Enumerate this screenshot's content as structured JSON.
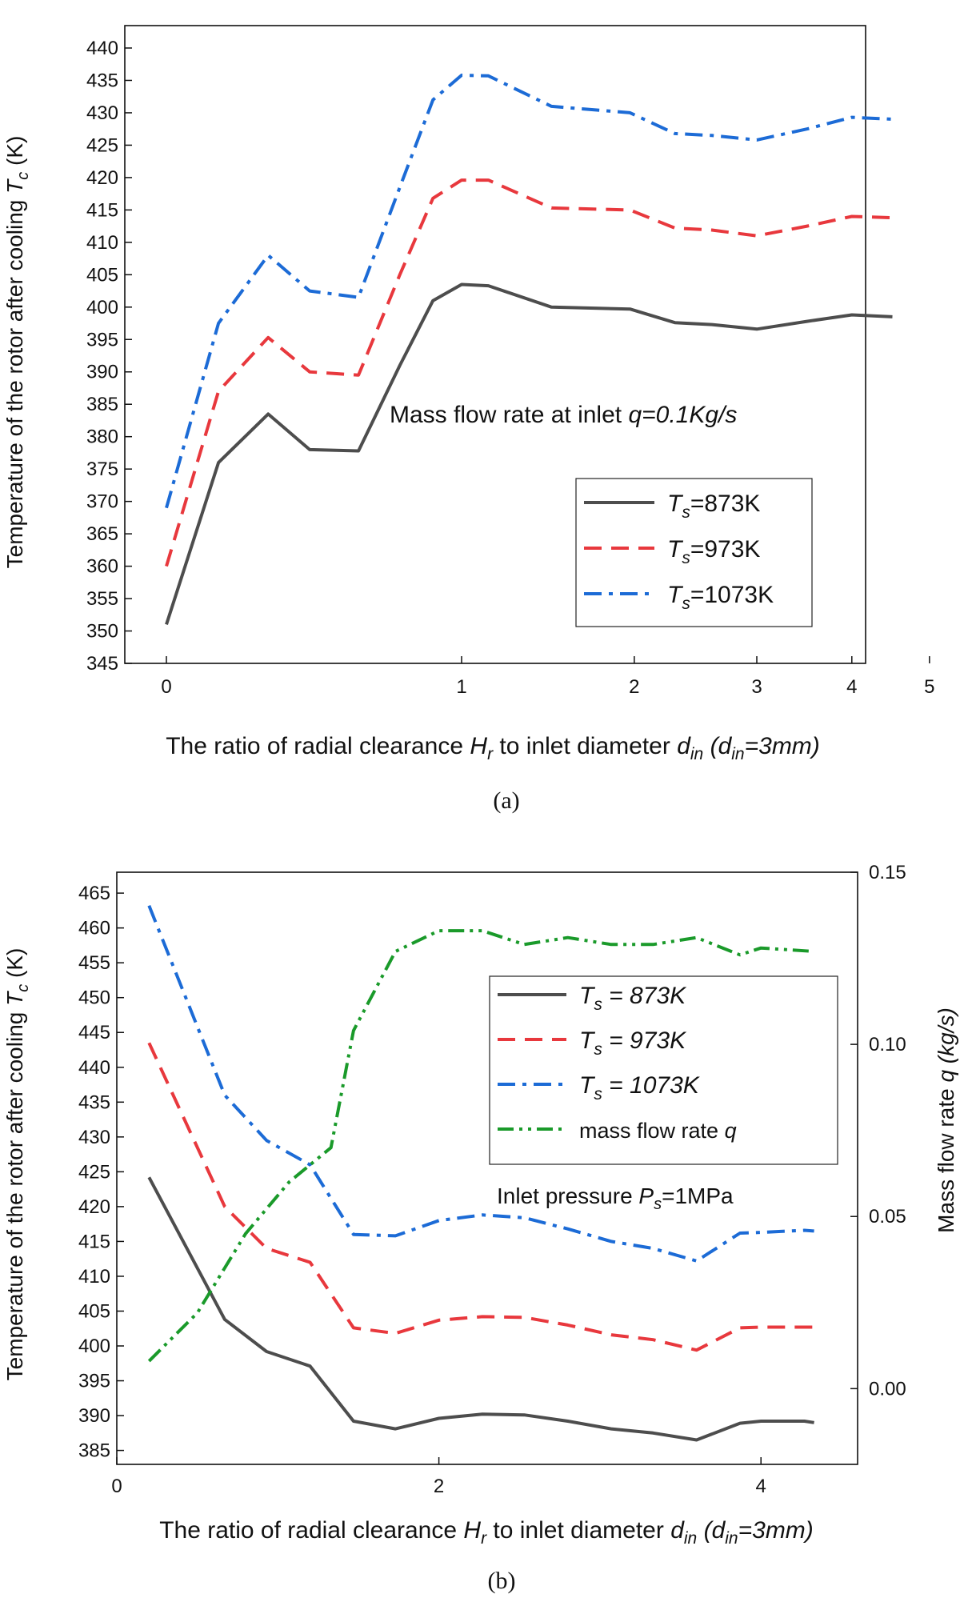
{
  "chart_data": [
    {
      "type": "line",
      "panel_label": "(a)",
      "x_scale": "log",
      "xlabel": {
        "main": "The ratio of radial clearance ",
        "sym": "H",
        "sub": "r",
        "mid": " to inlet diameter ",
        "sym2": "d",
        "sub2": "in",
        "paren_open": " (",
        "sym3": "d",
        "sub3": "in",
        "paren_rest": "=3mm)"
      },
      "ylabel": {
        "main": "Temperature of the rotor after cooling ",
        "sym": "T",
        "sub": "c",
        "unit": " (K)"
      },
      "ylim": [
        345,
        440
      ],
      "yticks": [
        345,
        350,
        355,
        360,
        365,
        370,
        375,
        380,
        385,
        390,
        395,
        400,
        405,
        410,
        415,
        420,
        425,
        430,
        435,
        440
      ],
      "xticks": [
        0,
        1,
        2,
        3,
        4,
        5
      ],
      "xtick_labels": [
        "0",
        "1",
        "2",
        "3",
        "4",
        "5"
      ],
      "annotation": {
        "text": "Mass flow rate at inlet ",
        "italic": "q=0.1Kg/s"
      },
      "legend_position": "bottom-right",
      "x": [
        0.0,
        0.13,
        0.27,
        0.4,
        0.57,
        0.73,
        0.87,
        1.0,
        1.13,
        1.47,
        1.97,
        2.3,
        2.6,
        3.0,
        3.5,
        4.0,
        4.5
      ],
      "series": [
        {
          "name": "Ts=873K",
          "sym": "T",
          "sub": "s",
          "rest": "=873K",
          "color": "#4d4d4d",
          "dash": "solid",
          "values": [
            351.0,
            376.0,
            383.5,
            378.0,
            377.8,
            391.0,
            401.0,
            403.5,
            403.3,
            400.0,
            399.7,
            397.6,
            397.3,
            396.6,
            397.8,
            398.8,
            398.5
          ]
        },
        {
          "name": "Ts=973K",
          "sym": "T",
          "sub": "s",
          "rest": "=973K",
          "color": "#e8383d",
          "dash": "dash",
          "values": [
            360.0,
            387.0,
            395.3,
            390.0,
            389.5,
            405.0,
            416.8,
            419.6,
            419.6,
            415.3,
            415.0,
            412.2,
            411.9,
            411.0,
            412.5,
            414.0,
            413.8
          ]
        },
        {
          "name": "Ts=1073K",
          "sym": "T",
          "sub": "s",
          "rest": "=1073K",
          "color": "#1c6bd6",
          "dash": "dashdot",
          "values": [
            369.0,
            397.5,
            408.0,
            402.5,
            401.5,
            418.5,
            432.0,
            435.8,
            435.7,
            431.0,
            430.0,
            426.8,
            426.5,
            425.8,
            427.5,
            429.3,
            429.0
          ]
        }
      ]
    },
    {
      "type": "line",
      "panel_label": "(b)",
      "x_scale": "linear",
      "xlim": [
        0,
        4.6
      ],
      "xlabel": {
        "main": "The ratio of radial clearance ",
        "sym": "H",
        "sub": "r",
        "mid": " to inlet diameter ",
        "sym2": "d",
        "sub2": "in",
        "paren_open": " (",
        "sym3": "d",
        "sub3": "in",
        "paren_rest": "=3mm)"
      },
      "ylabel": {
        "main": "Temperature of the rotor after cooling ",
        "sym": "T",
        "sub": "c",
        "unit": " (K)"
      },
      "ylabel_right": {
        "main": "Mass flow rate ",
        "sym": "q",
        "unit_italic": " (kg/s)"
      },
      "ylim": [
        383,
        468
      ],
      "yticks": [
        385,
        390,
        395,
        400,
        405,
        410,
        415,
        420,
        425,
        430,
        435,
        440,
        445,
        450,
        455,
        460,
        465
      ],
      "ylim_right": [
        -0.022,
        0.15
      ],
      "yticks_right": [
        0.0,
        0.05,
        0.1,
        0.15
      ],
      "ytick_labels_right": [
        "0.00",
        "0.05",
        "0.10",
        "0.15"
      ],
      "xticks": [
        0,
        2,
        4
      ],
      "xtick_labels": [
        "0",
        "2",
        "4"
      ],
      "annotation": {
        "text": "Inlet pressure ",
        "sym": "P",
        "sub": "s",
        "rest": "=1MPa"
      },
      "legend_position": "top-right",
      "x": [
        0.2,
        0.67,
        0.93,
        1.2,
        1.47,
        1.73,
        2.0,
        2.27,
        2.53,
        2.8,
        3.07,
        3.33,
        3.6,
        3.87,
        4.0,
        4.27,
        4.33
      ],
      "x_flow": [
        0.2,
        0.5,
        0.8,
        1.07,
        1.33,
        1.47,
        1.73,
        2.0,
        2.27,
        2.53,
        2.8,
        3.07,
        3.33,
        3.6,
        3.87,
        4.0,
        4.33
      ],
      "series": [
        {
          "name": "Ts = 873K",
          "sym": "T",
          "sub": "s",
          "rest": "  =  873K",
          "color": "#4d4d4d",
          "dash": "solid",
          "axis": "left",
          "values": [
            424.2,
            403.8,
            399.2,
            397.1,
            389.2,
            388.1,
            389.6,
            390.2,
            390.1,
            389.2,
            388.1,
            387.5,
            386.5,
            388.9,
            389.2,
            389.2,
            389.0
          ]
        },
        {
          "name": "Ts = 973K",
          "sym": "T",
          "sub": "s",
          "rest": "  =  973K",
          "color": "#e8383d",
          "dash": "dash",
          "axis": "left",
          "values": [
            443.5,
            420.0,
            414.0,
            412.0,
            402.6,
            401.8,
            403.7,
            404.2,
            404.1,
            403.0,
            401.6,
            400.9,
            399.4,
            402.6,
            402.7,
            402.7,
            402.7
          ]
        },
        {
          "name": "Ts = 1073K",
          "sym": "T",
          "sub": "s",
          "rest": "  =  1073K",
          "color": "#1c6bd6",
          "dash": "dashdot",
          "axis": "left",
          "values": [
            463.2,
            436.0,
            429.5,
            426.0,
            416.0,
            415.8,
            418.0,
            418.8,
            418.4,
            416.8,
            415.0,
            414.0,
            412.2,
            416.2,
            416.3,
            416.6,
            416.5
          ]
        },
        {
          "name": "mass flow rate q",
          "label": "mass flow rate q",
          "color": "#1a9a2a",
          "dash": "dashdotdot",
          "axis": "right",
          "values": [
            0.008,
            0.022,
            0.045,
            0.06,
            0.07,
            0.104,
            0.127,
            0.133,
            0.133,
            0.129,
            0.131,
            0.129,
            0.129,
            0.131,
            0.126,
            0.128,
            0.127
          ]
        }
      ]
    }
  ]
}
